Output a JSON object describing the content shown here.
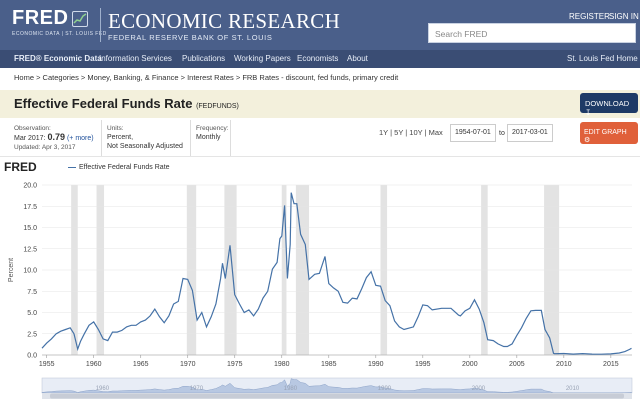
{
  "header": {
    "logo": "FRED",
    "logo_sub": "ECONOMIC DATA | ST. LOUIS FED",
    "brand": "ECONOMIC RESEARCH",
    "brand_sub": "FEDERAL RESERVE BANK OF ST. LOUIS",
    "register": "REGISTER",
    "signin": "SIGN IN",
    "search_placeholder": "Search FRED"
  },
  "nav": {
    "items": [
      "FRED® Economic Data",
      "Information Services",
      "Publications",
      "Working Papers",
      "Economists",
      "About"
    ],
    "right": "St. Louis Fed Home"
  },
  "breadcrumb": "Home > Categories > Money, Banking, & Finance > Interest Rates > FRB Rates - discount, fed funds, primary credit",
  "series": {
    "title": "Effective Federal Funds Rate",
    "code": "(FEDFUNDS)",
    "download": "DOWNLOAD"
  },
  "meta": {
    "observation_label": "Observation:",
    "observation_date": "Mar 2017:",
    "observation_value": "0.79",
    "observation_more": "(+ more)",
    "updated": "Updated: Apr 3, 2017",
    "units_label": "Units:",
    "units_1": "Percent,",
    "units_2": "Not Seasonally Adjusted",
    "freq_label": "Frequency:",
    "freq": "Monthly"
  },
  "controls": {
    "ranges": "1Y | 5Y | 10Y | Max",
    "start": "1954-07-01",
    "to": "to",
    "end": "2017-03-01",
    "edit": "EDIT GRAPH"
  },
  "chart_header": {
    "logo": "FRED",
    "legend": "Effective Federal Funds Rate"
  },
  "chart_data": {
    "type": "line",
    "title": "",
    "ylabel": "Percent",
    "ylim": [
      0,
      20
    ],
    "xlim": [
      1954.5,
      2017.25
    ],
    "yticks": [
      "0.0",
      "2.5",
      "5.0",
      "7.5",
      "10.0",
      "12.5",
      "15.0",
      "17.5",
      "20.0"
    ],
    "xticks": [
      "1955",
      "1960",
      "1965",
      "1970",
      "1975",
      "1980",
      "1985",
      "1990",
      "1995",
      "2000",
      "2005",
      "2010",
      "2015"
    ],
    "nav_ticks": [
      "1960",
      "1970",
      "1980",
      "1990",
      "2000",
      "2010"
    ],
    "color": "#4572a7",
    "recessions": [
      [
        1957.6,
        1958.3
      ],
      [
        1960.3,
        1961.1
      ],
      [
        1969.9,
        1970.9
      ],
      [
        1973.9,
        1975.2
      ],
      [
        1980.0,
        1980.5
      ],
      [
        1981.5,
        1982.9
      ],
      [
        1990.5,
        1991.2
      ],
      [
        2001.2,
        2001.9
      ],
      [
        2007.9,
        2009.5
      ]
    ],
    "series": [
      {
        "name": "Effective Federal Funds Rate",
        "x": [
          1954.5,
          1955.0,
          1955.5,
          1956.0,
          1956.5,
          1957.0,
          1957.5,
          1957.9,
          1958.3,
          1958.6,
          1959.0,
          1959.5,
          1960.0,
          1960.5,
          1961.0,
          1961.5,
          1962.0,
          1962.5,
          1963.0,
          1963.5,
          1964.0,
          1964.5,
          1965.0,
          1965.5,
          1966.0,
          1966.5,
          1967.0,
          1967.5,
          1968.0,
          1968.5,
          1969.0,
          1969.5,
          1970.0,
          1970.5,
          1971.0,
          1971.5,
          1972.0,
          1972.5,
          1973.0,
          1973.5,
          1973.7,
          1974.0,
          1974.5,
          1975.0,
          1975.5,
          1976.0,
          1976.5,
          1977.0,
          1977.5,
          1978.0,
          1978.5,
          1979.0,
          1979.5,
          1979.8,
          1980.0,
          1980.3,
          1980.6,
          1980.9,
          1981.0,
          1981.3,
          1981.6,
          1982.0,
          1982.5,
          1982.9,
          1983.5,
          1984.0,
          1984.6,
          1985.0,
          1985.5,
          1986.0,
          1986.5,
          1987.0,
          1987.5,
          1988.0,
          1988.5,
          1989.0,
          1989.5,
          1990.0,
          1990.5,
          1991.0,
          1991.5,
          1992.0,
          1992.5,
          1993.0,
          1994.0,
          1994.5,
          1995.0,
          1995.5,
          1996.0,
          1997.0,
          1998.0,
          1998.8,
          1999.0,
          1999.5,
          2000.0,
          2000.5,
          2001.0,
          2001.5,
          2001.9,
          2002.5,
          2003.0,
          2003.6,
          2004.0,
          2004.5,
          2005.0,
          2005.5,
          2006.0,
          2006.5,
          2007.0,
          2007.6,
          2008.0,
          2008.5,
          2008.9,
          2009.0,
          2010.0,
          2011.0,
          2012.0,
          2013.0,
          2014.0,
          2015.0,
          2015.9,
          2016.5,
          2017.0,
          2017.2
        ],
        "y": [
          0.8,
          1.4,
          1.9,
          2.5,
          2.8,
          3.0,
          3.2,
          2.5,
          0.7,
          1.6,
          2.5,
          3.5,
          3.9,
          3.0,
          1.9,
          1.7,
          2.7,
          2.7,
          2.9,
          3.3,
          3.5,
          3.5,
          3.9,
          4.1,
          4.6,
          5.4,
          4.5,
          3.8,
          4.6,
          6.0,
          6.3,
          9.0,
          8.9,
          7.6,
          4.1,
          5.0,
          3.3,
          4.5,
          6.0,
          9.0,
          10.8,
          9.0,
          12.9,
          7.1,
          6.0,
          5.0,
          5.3,
          4.6,
          5.4,
          6.7,
          7.5,
          10.1,
          10.9,
          13.7,
          14.0,
          17.6,
          9.0,
          13.0,
          19.1,
          17.8,
          17.8,
          14.2,
          13.0,
          8.9,
          9.5,
          9.6,
          11.6,
          8.4,
          7.9,
          7.5,
          6.2,
          6.1,
          6.7,
          6.6,
          7.8,
          9.1,
          9.8,
          8.2,
          8.1,
          6.4,
          5.8,
          4.0,
          3.3,
          3.0,
          3.3,
          4.5,
          5.9,
          5.8,
          5.3,
          5.5,
          5.5,
          4.7,
          4.6,
          5.2,
          5.5,
          6.5,
          5.4,
          3.8,
          1.8,
          1.7,
          1.3,
          1.0,
          1.0,
          1.3,
          2.3,
          3.2,
          4.3,
          5.2,
          5.25,
          5.25,
          3.0,
          2.0,
          0.2,
          0.15,
          0.18,
          0.1,
          0.16,
          0.11,
          0.09,
          0.13,
          0.24,
          0.4,
          0.66,
          0.79
        ]
      }
    ]
  }
}
